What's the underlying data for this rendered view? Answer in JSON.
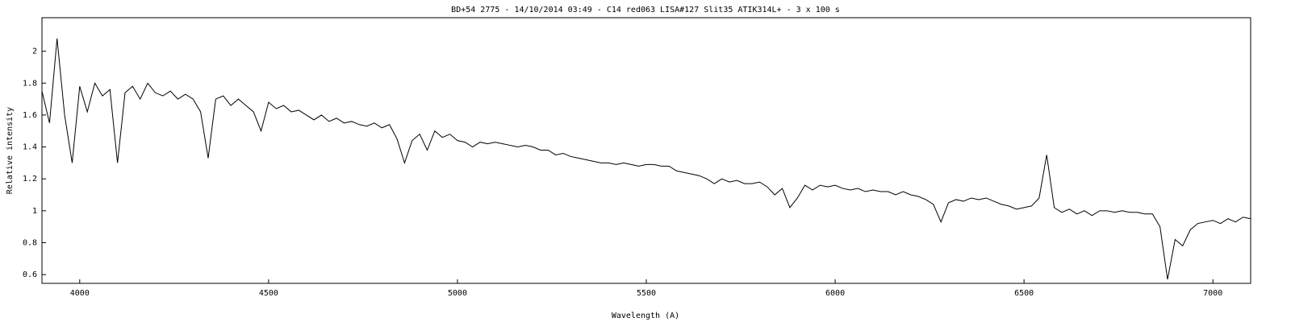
{
  "chart_data": {
    "type": "line",
    "title": "BD+54 2775 - 14/10/2014 03:49 - C14 red063 LISA#127 Slit35 ATIK314L+ - 3 x 100 s",
    "x_label": "Wavelength (A)",
    "y_label": "Relative intensity",
    "xlim": [
      3900,
      7100
    ],
    "ylim": [
      0.545,
      2.21
    ],
    "xticks": [
      4000,
      4500,
      5000,
      5500,
      6000,
      6500,
      7000
    ],
    "yticks": [
      0.6,
      0.8,
      1,
      1.2,
      1.4,
      1.6,
      1.8,
      2
    ],
    "x": [
      3900,
      3920,
      3940,
      3960,
      3980,
      4000,
      4020,
      4040,
      4060,
      4080,
      4100,
      4120,
      4140,
      4160,
      4180,
      4200,
      4220,
      4240,
      4260,
      4280,
      4300,
      4320,
      4340,
      4360,
      4380,
      4400,
      4420,
      4440,
      4460,
      4480,
      4500,
      4520,
      4540,
      4560,
      4580,
      4600,
      4620,
      4640,
      4660,
      4680,
      4700,
      4720,
      4740,
      4760,
      4780,
      4800,
      4820,
      4840,
      4860,
      4880,
      4900,
      4920,
      4940,
      4960,
      4980,
      5000,
      5020,
      5040,
      5060,
      5080,
      5100,
      5120,
      5140,
      5160,
      5180,
      5200,
      5220,
      5240,
      5260,
      5280,
      5300,
      5320,
      5340,
      5360,
      5380,
      5400,
      5420,
      5440,
      5460,
      5480,
      5500,
      5520,
      5540,
      5560,
      5580,
      5600,
      5620,
      5640,
      5660,
      5680,
      5700,
      5720,
      5740,
      5760,
      5780,
      5800,
      5820,
      5840,
      5860,
      5880,
      5900,
      5920,
      5940,
      5960,
      5980,
      6000,
      6020,
      6040,
      6060,
      6080,
      6100,
      6120,
      6140,
      6160,
      6180,
      6200,
      6220,
      6240,
      6260,
      6280,
      6300,
      6320,
      6340,
      6360,
      6380,
      6400,
      6420,
      6440,
      6460,
      6480,
      6500,
      6520,
      6540,
      6560,
      6580,
      6600,
      6620,
      6640,
      6660,
      6680,
      6700,
      6720,
      6740,
      6760,
      6780,
      6800,
      6820,
      6840,
      6860,
      6880,
      6900,
      6920,
      6940,
      6960,
      6980,
      7000,
      7020,
      7040,
      7060,
      7080,
      7100
    ],
    "series": [
      {
        "color": "#000000",
        "values": [
          1.75,
          1.55,
          2.08,
          1.6,
          1.3,
          1.78,
          1.62,
          1.8,
          1.72,
          1.76,
          1.3,
          1.74,
          1.78,
          1.7,
          1.8,
          1.74,
          1.72,
          1.75,
          1.7,
          1.73,
          1.7,
          1.62,
          1.33,
          1.7,
          1.72,
          1.66,
          1.7,
          1.66,
          1.62,
          1.5,
          1.68,
          1.64,
          1.66,
          1.62,
          1.63,
          1.6,
          1.57,
          1.6,
          1.56,
          1.58,
          1.55,
          1.56,
          1.54,
          1.53,
          1.55,
          1.52,
          1.54,
          1.45,
          1.3,
          1.44,
          1.48,
          1.38,
          1.5,
          1.46,
          1.48,
          1.44,
          1.43,
          1.4,
          1.43,
          1.42,
          1.43,
          1.42,
          1.41,
          1.4,
          1.41,
          1.4,
          1.38,
          1.38,
          1.35,
          1.36,
          1.34,
          1.33,
          1.32,
          1.31,
          1.3,
          1.3,
          1.29,
          1.3,
          1.29,
          1.28,
          1.29,
          1.29,
          1.28,
          1.28,
          1.25,
          1.24,
          1.23,
          1.22,
          1.2,
          1.17,
          1.2,
          1.18,
          1.19,
          1.17,
          1.17,
          1.18,
          1.15,
          1.1,
          1.14,
          1.02,
          1.08,
          1.16,
          1.13,
          1.16,
          1.15,
          1.16,
          1.14,
          1.13,
          1.14,
          1.12,
          1.13,
          1.12,
          1.12,
          1.1,
          1.12,
          1.1,
          1.09,
          1.07,
          1.04,
          0.93,
          1.05,
          1.07,
          1.06,
          1.08,
          1.07,
          1.08,
          1.06,
          1.04,
          1.03,
          1.01,
          1.02,
          1.03,
          1.08,
          1.35,
          1.02,
          0.99,
          1.01,
          0.98,
          1,
          0.97,
          1,
          1,
          0.99,
          1,
          0.99,
          0.99,
          0.98,
          0.98,
          0.9,
          0.57,
          0.82,
          0.78,
          0.88,
          0.92,
          0.93,
          0.94,
          0.92,
          0.95,
          0.93,
          0.96,
          0.95
        ]
      }
    ]
  }
}
